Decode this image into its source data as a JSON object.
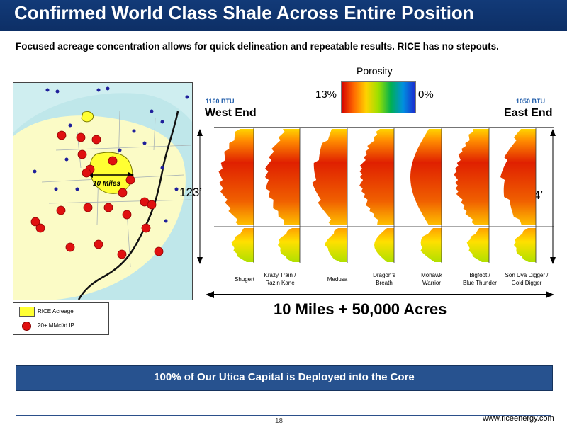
{
  "header": {
    "title": "Confirmed World Class Shale Across Entire Position"
  },
  "subtitle": "Focused acreage concentration allows for quick delineation and repeatable results.  RICE has no stepouts.",
  "porosity": {
    "title": "Porosity",
    "max_label": "13%",
    "min_label": "0%"
  },
  "cross_section": {
    "west": {
      "btu": "1160 BTU",
      "label": "West End",
      "thickness": "123’"
    },
    "east": {
      "btu": "1050 BTU",
      "label": "East End",
      "thickness": "124’"
    },
    "wells": [
      {
        "l1": "Shugert",
        "l2": ""
      },
      {
        "l1": "Krazy Train /",
        "l2": "Razin Kane"
      },
      {
        "l1": "Medusa",
        "l2": ""
      },
      {
        "l1": "Dragon’s",
        "l2": "Breath"
      },
      {
        "l1": "Mohawk",
        "l2": "Warrior"
      },
      {
        "l1": "Bigfoot /",
        "l2": "Blue Thunder"
      },
      {
        "l1": "Son Uva Digger /",
        "l2": "Gold Digger"
      }
    ]
  },
  "map": {
    "scale_label": "10 Miles"
  },
  "legend": {
    "acreage": "RICE Acreage",
    "ip": "20+ MMcf/d IP"
  },
  "summary": "10 Miles  +  50,000 Acres",
  "banner": "100% of Our Utica Capital is Deployed into the Core",
  "footer": {
    "page": "18",
    "website": "www.riceenergy.com"
  },
  "colors": {
    "title_bar": "#123a78",
    "banner": "#27528f",
    "btu": "#1c5aa8",
    "acreage": "#ffff33",
    "ip_dot": "#e01010"
  }
}
